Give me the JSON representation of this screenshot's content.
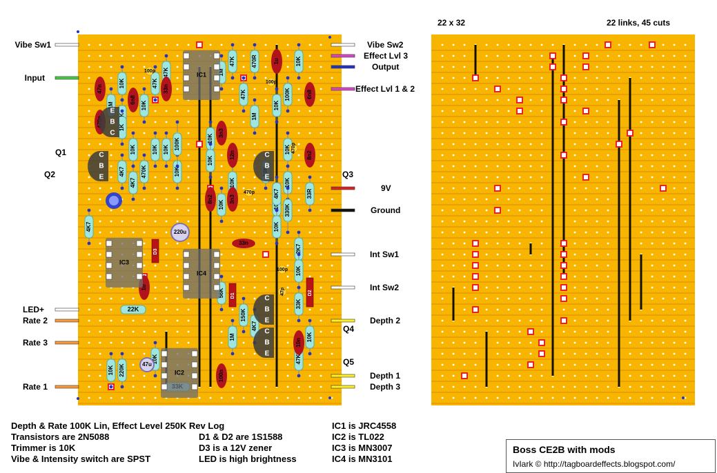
{
  "board": {
    "size_label": "22 x 32",
    "links_cuts_label": "22 links, 45 cuts",
    "strip_color": "#f7b500",
    "strip_line_color": "#e08c00",
    "link_color": "#111111",
    "cut_color": "#e8202a",
    "resistor_color": "#9fe6e1",
    "cap_color": "#b3131d"
  },
  "wire_labels_left": [
    {
      "id": "vibe-sw1",
      "text": "Vibe Sw1",
      "color": "#ffffff"
    },
    {
      "id": "input",
      "text": "Input",
      "color": "#44cc44"
    },
    {
      "id": "q1",
      "text": "Q1",
      "color": ""
    },
    {
      "id": "q2",
      "text": "Q2",
      "color": ""
    },
    {
      "id": "led-plus",
      "text": "LED+",
      "color": "#ffffff"
    },
    {
      "id": "rate-2",
      "text": "Rate 2",
      "color": "#ff9933"
    },
    {
      "id": "rate-3",
      "text": "Rate 3",
      "color": "#ff9933"
    },
    {
      "id": "rate-1",
      "text": "Rate 1",
      "color": "#ff9933"
    }
  ],
  "wire_labels_right": [
    {
      "id": "vibe-sw2",
      "text": "Vibe Sw2",
      "color": "#ffffff"
    },
    {
      "id": "effect-lvl-3",
      "text": "Effect Lvl 3",
      "color": "#dd44cc"
    },
    {
      "id": "output",
      "text": "Output",
      "color": "#2233cc"
    },
    {
      "id": "effect-lvl-1-2",
      "text": "Effect Lvl 1 & 2",
      "color": "#dd44cc"
    },
    {
      "id": "q3",
      "text": "Q3",
      "color": ""
    },
    {
      "id": "9v",
      "text": "9V",
      "color": "#dd2222"
    },
    {
      "id": "ground",
      "text": "Ground",
      "color": "#111111"
    },
    {
      "id": "int-sw1",
      "text": "Int Sw1",
      "color": "#ffffff"
    },
    {
      "id": "int-sw2",
      "text": "Int Sw2",
      "color": "#ffffff"
    },
    {
      "id": "depth-2",
      "text": "Depth 2",
      "color": "#ffee22"
    },
    {
      "id": "q4",
      "text": "Q4",
      "color": ""
    },
    {
      "id": "q5",
      "text": "Q5",
      "color": ""
    },
    {
      "id": "depth-1",
      "text": "Depth 1",
      "color": "#ffee22"
    },
    {
      "id": "depth-3",
      "text": "Depth 3",
      "color": "#ffee22"
    }
  ],
  "components": {
    "resistors": [
      "10K",
      "47K",
      "10K",
      "47K",
      "1M",
      "1K",
      "10K",
      "10K",
      "4K7",
      "470K",
      "10K",
      "10K",
      "100K",
      "47K",
      "470R",
      "47K",
      "1M",
      "10K",
      "100K",
      "10K",
      "10K",
      "10K",
      "10K",
      "10K",
      "10K",
      "33R",
      "10K",
      "330K",
      "10K",
      "2K7",
      "4K7",
      "4K7",
      "22K",
      "56K",
      "150K",
      "33K",
      "1M",
      "4K7",
      "10K",
      "10K",
      "220K",
      "10K",
      "47K",
      "33K",
      "1M",
      "10K",
      "10K",
      "10K",
      "1K",
      "4K7"
    ],
    "caps_red": [
      "47n",
      "470n",
      "6n8",
      "33n",
      "1u",
      "6n8",
      "3n3",
      "12n",
      "8n2",
      "8n2",
      "3n3",
      "33n",
      "1u",
      "10n",
      "100n"
    ],
    "caps_yellow": [
      "100p",
      "100p",
      "470p",
      "470p",
      "100p",
      "47p"
    ],
    "electrolytics": [
      "220u",
      "47u"
    ],
    "diodes": [
      "D3",
      "D1",
      "D2"
    ],
    "ics": [
      "IC1",
      "IC2",
      "IC3",
      "IC4"
    ],
    "transistor_pins": [
      "E",
      "B",
      "C",
      "C",
      "B",
      "E",
      "C",
      "B",
      "E",
      "C",
      "B",
      "E",
      "C",
      "B",
      "E"
    ]
  },
  "notes": [
    "Depth & Rate 100K Lin, Effect Level 250K Rev Log",
    "Transistors are 2N5088",
    "Trimmer is 10K",
    "Vibe & Intensity switch are SPST",
    "D1 & D2 are 1S1588",
    "D3 is a 12V zener",
    "LED is high brightness",
    "IC1 is JRC4558",
    "IC2 is TL022",
    "IC3 is MN3007",
    "IC4 is MN3101"
  ],
  "title": "Boss CE2B with mods",
  "credit": "IvIark © http://tagboardeffects.blogspot.com/"
}
